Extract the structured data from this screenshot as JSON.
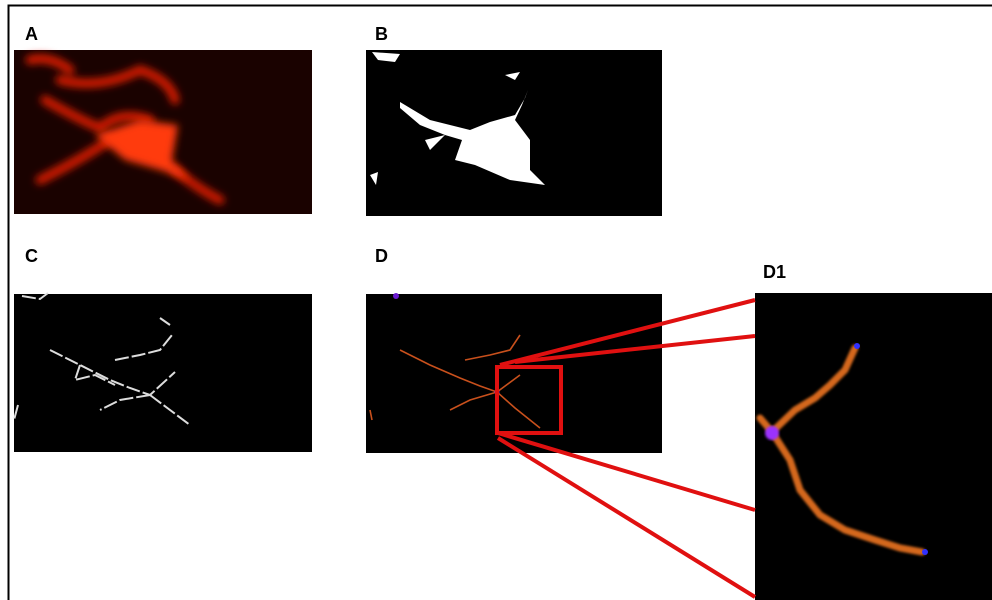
{
  "panels": [
    {
      "label": "A"
    },
    {
      "label": "B"
    },
    {
      "label": "C"
    },
    {
      "label": "D"
    },
    {
      "label": "D1"
    }
  ]
}
